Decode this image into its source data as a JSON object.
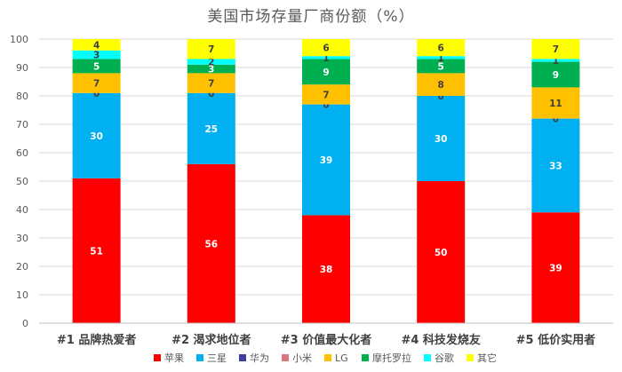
{
  "chart_data": {
    "type": "bar",
    "stacked": true,
    "title": "美国市场存量厂商份额（%）",
    "categories": [
      "#1 品牌热爱者",
      "#2 渴求地位者",
      "#3 价值最大化者",
      "#4 科技发烧友",
      "#5 低价实用者"
    ],
    "ylim": [
      0,
      100
    ],
    "yticks": [
      0,
      10,
      20,
      30,
      40,
      50,
      60,
      70,
      80,
      90,
      100
    ],
    "grid": true,
    "legend_position": "bottom",
    "series": [
      {
        "name": "苹果",
        "color": "#ff0000",
        "label_color": "#ffffff",
        "values": [
          51,
          56,
          38,
          50,
          39
        ]
      },
      {
        "name": "三星",
        "color": "#00b0f0",
        "label_color": "#ffffff",
        "values": [
          30,
          25,
          39,
          30,
          33
        ]
      },
      {
        "name": "华为",
        "color": "#3f3f9f",
        "label_color": "#ffffff",
        "values": [
          0,
          0,
          0,
          0,
          0
        ]
      },
      {
        "name": "小米",
        "color": "#d9777e",
        "label_color": "#ffffff",
        "values": [
          0,
          0,
          0,
          0,
          0
        ]
      },
      {
        "name": "LG",
        "color": "#ffc000",
        "label_color": "#404040",
        "values": [
          7,
          7,
          7,
          8,
          11
        ]
      },
      {
        "name": "摩托罗拉",
        "color": "#00b050",
        "label_color": "#ffffff",
        "values": [
          5,
          3,
          9,
          5,
          9
        ]
      },
      {
        "name": "谷歌",
        "color": "#00ffff",
        "label_color": "#404040",
        "values": [
          3,
          2,
          1,
          1,
          1
        ]
      },
      {
        "name": "其它",
        "color": "#ffff00",
        "label_color": "#404040",
        "values": [
          4,
          7,
          6,
          6,
          7
        ]
      }
    ]
  }
}
